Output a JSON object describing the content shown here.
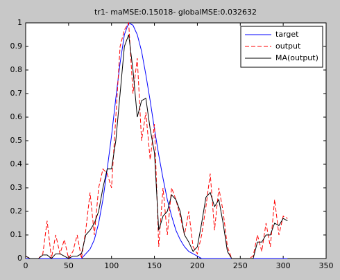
{
  "chart_data": {
    "type": "line",
    "title": "tr1- maMSE:0.15018- globalMSE:0.032632",
    "x": [
      0,
      5,
      10,
      15,
      20,
      25,
      30,
      35,
      40,
      45,
      50,
      55,
      60,
      65,
      70,
      75,
      80,
      85,
      90,
      95,
      100,
      105,
      110,
      115,
      120,
      125,
      130,
      135,
      140,
      145,
      150,
      155,
      160,
      165,
      170,
      175,
      180,
      185,
      190,
      195,
      200,
      205,
      210,
      215,
      220,
      225,
      230,
      235,
      240,
      245,
      250,
      255,
      260,
      265,
      270,
      275,
      280,
      285,
      290,
      295,
      300,
      305
    ],
    "series": [
      {
        "name": "target",
        "color": "#0000ff",
        "dash": false,
        "values": [
          0,
          0,
          0,
          0,
          0,
          0,
          0,
          0,
          0,
          0,
          0,
          0,
          0,
          0,
          0.02,
          0.04,
          0.08,
          0.15,
          0.25,
          0.38,
          0.52,
          0.68,
          0.83,
          0.95,
          1.0,
          0.99,
          0.95,
          0.88,
          0.78,
          0.67,
          0.55,
          0.44,
          0.34,
          0.25,
          0.18,
          0.12,
          0.08,
          0.05,
          0.03,
          0.02,
          0.01,
          0,
          0,
          0,
          0,
          0,
          0,
          0,
          0,
          0,
          0,
          0,
          0,
          0,
          0,
          0,
          0,
          0,
          0,
          0,
          0,
          0
        ]
      },
      {
        "name": "output",
        "color": "#ff0000",
        "dash": true,
        "values": [
          0.01,
          0,
          0,
          0,
          0.02,
          0.16,
          0,
          0.1,
          0.02,
          0.08,
          0,
          0.03,
          0.1,
          0,
          0.12,
          0.28,
          0.1,
          0.3,
          0.38,
          0.36,
          0.3,
          0.6,
          0.9,
          0.97,
          1.0,
          0.7,
          0.85,
          0.5,
          0.62,
          0.42,
          0.57,
          0.05,
          0.3,
          0.1,
          0.3,
          0.25,
          0.18,
          0.1,
          0.2,
          0.05,
          0.02,
          0.1,
          0.22,
          0.36,
          0.12,
          0.3,
          0.2,
          0.05,
          0,
          0,
          0,
          0,
          0,
          0.01,
          0.1,
          0.03,
          0.15,
          0.05,
          0.25,
          0.1,
          0.18,
          0.17
        ]
      },
      {
        "name": "MA(output)",
        "color": "#000000",
        "dash": false,
        "values": [
          0.01,
          0,
          0,
          0,
          0.015,
          0.015,
          0,
          0.02,
          0.02,
          0.01,
          0,
          0.01,
          0.01,
          0.02,
          0.1,
          0.12,
          0.15,
          0.2,
          0.3,
          0.38,
          0.38,
          0.5,
          0.7,
          0.9,
          0.95,
          0.8,
          0.6,
          0.67,
          0.68,
          0.55,
          0.45,
          0.12,
          0.18,
          0.2,
          0.27,
          0.25,
          0.2,
          0.1,
          0.07,
          0.03,
          0.05,
          0.15,
          0.26,
          0.28,
          0.22,
          0.25,
          0.15,
          0.03,
          0,
          0,
          0,
          0,
          0,
          0,
          0.07,
          0.07,
          0.1,
          0.1,
          0.15,
          0.14,
          0.17,
          0.16
        ]
      }
    ],
    "xlim": [
      0,
      350
    ],
    "xticks": [
      0,
      50,
      100,
      150,
      200,
      250,
      300,
      350
    ],
    "ylim": [
      0,
      1
    ],
    "yticks": [
      0,
      0.1,
      0.2,
      0.3,
      0.4,
      0.5,
      0.6,
      0.7,
      0.8,
      0.9,
      1
    ],
    "grid": false,
    "legend": "upper right"
  }
}
